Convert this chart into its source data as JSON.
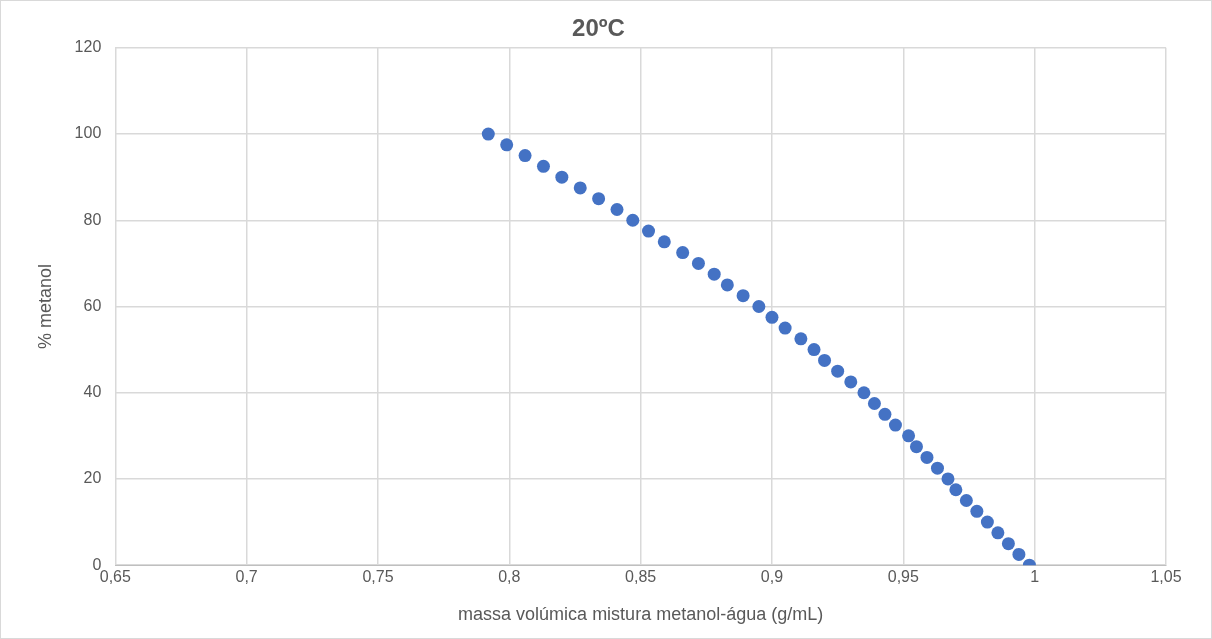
{
  "chart_data": {
    "type": "scatter",
    "title": "20ºC",
    "xlabel": "massa volúmica mistura metanol-água (g/mL)",
    "ylabel": "% metanol",
    "xlim": [
      0.65,
      1.05
    ],
    "xticks": [
      {
        "value": 0.65,
        "label": "0,65"
      },
      {
        "value": 0.7,
        "label": "0,7"
      },
      {
        "value": 0.75,
        "label": "0,75"
      },
      {
        "value": 0.8,
        "label": "0,8"
      },
      {
        "value": 0.85,
        "label": "0,85"
      },
      {
        "value": 0.9,
        "label": "0,9"
      },
      {
        "value": 0.95,
        "label": "0,95"
      },
      {
        "value": 1,
        "label": "1"
      },
      {
        "value": 1.05,
        "label": "1,05"
      }
    ],
    "ylim": [
      0,
      120
    ],
    "yticks": [
      0,
      20,
      40,
      60,
      80,
      100,
      120
    ],
    "grid": true,
    "legend": false,
    "marker": "circle",
    "series": [
      {
        "color": "#4472c4",
        "x": [
          0.998,
          0.994,
          0.99,
          0.986,
          0.982,
          0.978,
          0.974,
          0.97,
          0.967,
          0.963,
          0.959,
          0.955,
          0.952,
          0.947,
          0.943,
          0.939,
          0.935,
          0.93,
          0.925,
          0.92,
          0.916,
          0.911,
          0.905,
          0.9,
          0.895,
          0.889,
          0.883,
          0.878,
          0.872,
          0.866,
          0.859,
          0.853,
          0.847,
          0.841,
          0.834,
          0.827,
          0.82,
          0.813,
          0.806,
          0.799,
          0.792
        ],
        "values": [
          0,
          2.5,
          5,
          7.5,
          10,
          12.5,
          15,
          17.5,
          20,
          22.5,
          25,
          27.5,
          30,
          32.5,
          35,
          37.5,
          40,
          42.5,
          45,
          47.5,
          50,
          52.5,
          55,
          57.5,
          60,
          62.5,
          65,
          67.5,
          70,
          72.5,
          75,
          77.5,
          80,
          82.5,
          85,
          87.5,
          90,
          92.5,
          95,
          97.5,
          100
        ]
      }
    ]
  }
}
